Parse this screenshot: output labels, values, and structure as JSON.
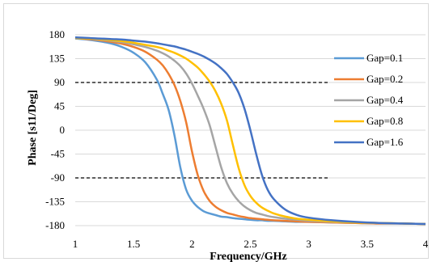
{
  "chart_data": {
    "type": "line",
    "title": "",
    "xlabel": "Frequency/GHz",
    "ylabel": "Phase [s11/Deg]",
    "xlim": [
      1,
      4
    ],
    "ylim": [
      -180,
      180
    ],
    "x_ticks": [
      "1",
      "1.5",
      "2",
      "2.5",
      "3",
      "3.5",
      "4"
    ],
    "y_ticks": [
      "180",
      "135",
      "90",
      "45",
      "0",
      "-45",
      "-90",
      "-135",
      "-180"
    ],
    "grid": "horizontal",
    "legend_position": "right",
    "reference_lines": [
      90,
      -90
    ],
    "x": [
      1.0,
      1.1,
      1.2,
      1.3,
      1.4,
      1.5,
      1.6,
      1.7,
      1.75,
      1.8,
      1.85,
      1.9,
      1.95,
      2.0,
      2.05,
      2.1,
      2.15,
      2.2,
      2.25,
      2.3,
      2.35,
      2.4,
      2.45,
      2.5,
      2.55,
      2.6,
      2.65,
      2.7,
      2.8,
      2.9,
      3.0,
      3.2,
      3.4,
      3.6,
      3.8,
      4.0
    ],
    "series": [
      {
        "name": "Gap=0.1",
        "color": "#5b9bd5",
        "values": [
          173,
          171,
          168,
          164,
          157,
          146,
          128,
          95,
          68,
          38,
          -10,
          -70,
          -112,
          -133,
          -145,
          -153,
          -157,
          -160,
          -163,
          -164,
          -166,
          -167,
          -168,
          -169,
          -170,
          -170,
          -171,
          -171,
          -172,
          -173,
          -173,
          -174,
          -175,
          -176,
          -176,
          -177
        ]
      },
      {
        "name": "Gap=0.2",
        "color": "#ed7d31",
        "values": [
          174,
          172,
          170,
          167,
          163,
          157,
          148,
          133,
          122,
          106,
          85,
          55,
          15,
          -40,
          -85,
          -115,
          -133,
          -144,
          -151,
          -156,
          -159,
          -162,
          -164,
          -166,
          -167,
          -168,
          -169,
          -170,
          -171,
          -172,
          -173,
          -174,
          -175,
          -176,
          -176,
          -177
        ]
      },
      {
        "name": "Gap=0.4",
        "color": "#a5a5a5",
        "values": [
          174,
          173,
          171,
          169,
          166,
          162,
          157,
          150,
          145,
          139,
          131,
          121,
          107,
          88,
          65,
          40,
          10,
          -30,
          -70,
          -100,
          -120,
          -134,
          -144,
          -151,
          -156,
          -159,
          -162,
          -164,
          -167,
          -169,
          -171,
          -173,
          -174,
          -175,
          -176,
          -177
        ]
      },
      {
        "name": "Gap=0.8",
        "color": "#ffc000",
        "values": [
          174,
          173,
          172,
          170,
          168,
          165,
          161,
          157,
          154,
          150,
          146,
          141,
          135,
          127,
          118,
          106,
          92,
          74,
          50,
          18,
          -28,
          -72,
          -104,
          -124,
          -137,
          -146,
          -152,
          -157,
          -163,
          -167,
          -169,
          -172,
          -174,
          -175,
          -176,
          -177
        ]
      },
      {
        "name": "Gap=1.6",
        "color": "#4472c4",
        "values": [
          175,
          174,
          173,
          172,
          171,
          169,
          167,
          164,
          162,
          160,
          158,
          155,
          152,
          148,
          144,
          139,
          133,
          126,
          117,
          106,
          90,
          70,
          40,
          0,
          -45,
          -85,
          -113,
          -130,
          -150,
          -160,
          -165,
          -170,
          -173,
          -175,
          -176,
          -177
        ]
      }
    ]
  }
}
